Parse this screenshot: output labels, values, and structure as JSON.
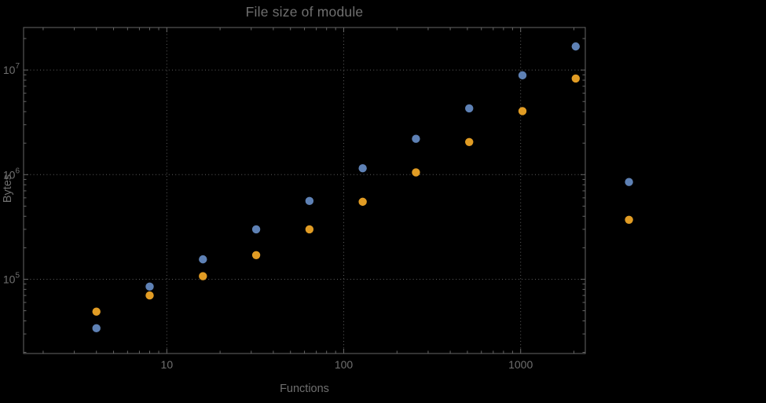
{
  "colors": {
    "background": "#000000",
    "text": "#6f6f6f",
    "frame": "#666666",
    "grid": "#5f5f5f"
  },
  "chart_data": {
    "type": "scatter",
    "title": "File size of module",
    "xlabel": "Functions",
    "ylabel": "Bytes",
    "x_scale": "log",
    "y_scale": "log",
    "xlim": [
      1.55,
      2320
    ],
    "ylim": [
      19500,
      25500000
    ],
    "grid": "dotted gray lines at decade ticks",
    "legend": "none",
    "x": [
      4,
      8,
      16,
      32,
      64,
      128,
      256,
      512,
      1024,
      2048,
      4096
    ],
    "series": [
      {
        "name": "series-1-blue",
        "color": "#5e81b5",
        "values": [
          34000,
          85000,
          155000,
          300000,
          560000,
          1150000,
          2200000,
          4300000,
          8900000,
          16800000,
          850000
        ]
      },
      {
        "name": "series-2-orange",
        "color": "#e19c24",
        "values": [
          49000,
          70000,
          107000,
          170000,
          300000,
          550000,
          1050000,
          2050000,
          4050000,
          8300000,
          370000
        ]
      }
    ],
    "x_ticks": [
      10,
      100,
      1000
    ],
    "x_tick_labels": [
      "10",
      "100",
      "1000"
    ],
    "y_ticks": [
      100000,
      1000000,
      10000000
    ],
    "y_tick_base": "10",
    "y_tick_exponents": [
      "5",
      "6",
      "7"
    ]
  }
}
